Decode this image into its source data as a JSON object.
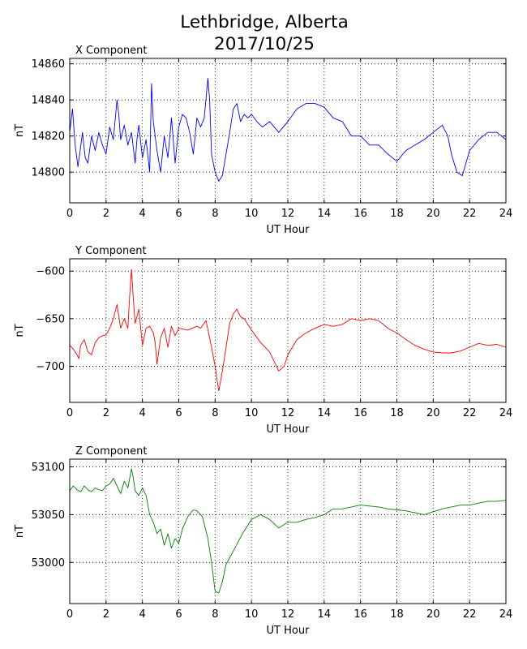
{
  "figure": {
    "title_line1": "Lethbridge, Alberta",
    "title_line2": "2017/10/25"
  },
  "chart_data": [
    {
      "type": "line",
      "title": "X Component",
      "xlabel": "UT Hour",
      "ylabel": "nT",
      "xlim": [
        0,
        24
      ],
      "ylim": [
        14783,
        14863
      ],
      "xticks": [
        0,
        2,
        4,
        6,
        8,
        10,
        12,
        14,
        16,
        18,
        20,
        22,
        24
      ],
      "yticks": [
        14800,
        14820,
        14840,
        14860
      ],
      "grid": true,
      "color": "#0000ff",
      "series": [
        {
          "x": [
            0,
            0.15,
            0.3,
            0.45,
            0.55,
            0.7,
            0.85,
            1.0,
            1.2,
            1.4,
            1.6,
            1.8,
            2.0,
            2.2,
            2.4,
            2.6,
            2.7,
            2.8,
            3.0,
            3.2,
            3.4,
            3.6,
            3.7,
            3.8,
            4.0,
            4.2,
            4.4,
            4.5,
            4.6,
            4.8,
            5.0,
            5.2,
            5.4,
            5.6,
            5.8,
            6.0,
            6.2,
            6.4,
            6.6,
            6.8,
            7.0,
            7.2,
            7.4,
            7.6,
            7.7,
            7.8,
            8.0,
            8.2,
            8.4,
            8.6,
            8.8,
            9.0,
            9.2,
            9.4,
            9.6,
            9.8,
            10.0,
            10.3,
            10.6,
            11.0,
            11.5,
            12.0,
            12.5,
            13.0,
            13.5,
            14.0,
            14.5,
            15.0,
            15.5,
            16.0,
            16.5,
            17.0,
            17.5,
            18.0,
            18.5,
            19.0,
            19.5,
            20.0,
            20.5,
            20.8,
            21.0,
            21.3,
            21.6,
            22.0,
            22.5,
            23.0,
            23.5,
            24.0
          ],
          "y": [
            14822,
            14835,
            14815,
            14803,
            14810,
            14822,
            14808,
            14805,
            14820,
            14812,
            14822,
            14815,
            14810,
            14825,
            14818,
            14840,
            14832,
            14818,
            14826,
            14815,
            14822,
            14805,
            14818,
            14826,
            14808,
            14818,
            14800,
            14849,
            14828,
            14812,
            14800,
            14820,
            14808,
            14830,
            14805,
            14825,
            14832,
            14830,
            14822,
            14810,
            14830,
            14825,
            14830,
            14852,
            14840,
            14810,
            14800,
            14795,
            14798,
            14810,
            14822,
            14835,
            14838,
            14828,
            14832,
            14830,
            14832,
            14828,
            14825,
            14828,
            14822,
            14828,
            14835,
            14838,
            14838,
            14836,
            14830,
            14828,
            14820,
            14820,
            14815,
            14815,
            14810,
            14806,
            14812,
            14815,
            14818,
            14822,
            14826,
            14820,
            14810,
            14800,
            14798,
            14812,
            14818,
            14822,
            14822,
            14818
          ]
        }
      ]
    },
    {
      "type": "line",
      "title": "Y Component",
      "xlabel": "UT Hour",
      "ylabel": "nT",
      "xlim": [
        0,
        24
      ],
      "ylim": [
        -738,
        -587
      ],
      "xticks": [
        0,
        2,
        4,
        6,
        8,
        10,
        12,
        14,
        16,
        18,
        20,
        22,
        24
      ],
      "yticks": [
        -700,
        -650,
        -600
      ],
      "grid": true,
      "color": "#ff0000",
      "series": [
        {
          "x": [
            0,
            0.2,
            0.4,
            0.5,
            0.6,
            0.8,
            1.0,
            1.2,
            1.4,
            1.6,
            1.8,
            2.0,
            2.2,
            2.4,
            2.6,
            2.8,
            3.0,
            3.2,
            3.3,
            3.4,
            3.5,
            3.6,
            3.8,
            4.0,
            4.2,
            4.4,
            4.6,
            4.7,
            4.8,
            5.0,
            5.2,
            5.4,
            5.6,
            5.8,
            6.0,
            6.5,
            7.0,
            7.2,
            7.5,
            7.8,
            8.0,
            8.2,
            8.4,
            8.6,
            8.8,
            9.0,
            9.2,
            9.4,
            9.6,
            10.0,
            10.5,
            11.0,
            11.5,
            11.8,
            12.0,
            12.5,
            13.0,
            13.5,
            14.0,
            14.5,
            15.0,
            15.5,
            16.0,
            16.5,
            17.0,
            17.5,
            18.0,
            18.5,
            19.0,
            19.5,
            20.0,
            20.5,
            21.0,
            21.5,
            22.0,
            22.5,
            23.0,
            23.5,
            24.0
          ],
          "y": [
            -678,
            -682,
            -688,
            -692,
            -678,
            -672,
            -685,
            -688,
            -675,
            -670,
            -668,
            -667,
            -660,
            -650,
            -635,
            -660,
            -650,
            -660,
            -625,
            -598,
            -630,
            -655,
            -640,
            -678,
            -660,
            -658,
            -665,
            -675,
            -698,
            -670,
            -660,
            -680,
            -658,
            -668,
            -660,
            -662,
            -658,
            -660,
            -652,
            -680,
            -700,
            -726,
            -705,
            -680,
            -655,
            -645,
            -640,
            -648,
            -650,
            -662,
            -675,
            -685,
            -705,
            -700,
            -688,
            -672,
            -665,
            -660,
            -656,
            -658,
            -656,
            -650,
            -652,
            -650,
            -652,
            -660,
            -665,
            -672,
            -678,
            -682,
            -685,
            -686,
            -686,
            -684,
            -680,
            -676,
            -678,
            -677,
            -680
          ]
        }
      ]
    },
    {
      "type": "line",
      "title": "Z Component",
      "xlabel": "UT Hour",
      "ylabel": "nT",
      "xlim": [
        0,
        24
      ],
      "ylim": [
        52957,
        53108
      ],
      "xticks": [
        0,
        2,
        4,
        6,
        8,
        10,
        12,
        14,
        16,
        18,
        20,
        22,
        24
      ],
      "yticks": [
        53000,
        53050,
        53100
      ],
      "grid": true,
      "color": "#008000",
      "series": [
        {
          "x": [
            0,
            0.2,
            0.4,
            0.6,
            0.8,
            1.0,
            1.2,
            1.4,
            1.6,
            1.8,
            2.0,
            2.2,
            2.4,
            2.6,
            2.8,
            3.0,
            3.2,
            3.4,
            3.5,
            3.6,
            3.8,
            4.0,
            4.2,
            4.4,
            4.6,
            4.8,
            5.0,
            5.2,
            5.4,
            5.6,
            5.8,
            6.0,
            6.2,
            6.5,
            6.8,
            7.0,
            7.3,
            7.6,
            7.8,
            8.0,
            8.2,
            8.4,
            8.6,
            8.8,
            9.0,
            9.5,
            10.0,
            10.5,
            11.0,
            11.5,
            12.0,
            12.5,
            13.0,
            13.5,
            14.0,
            14.5,
            15.0,
            15.5,
            16.0,
            16.5,
            17.0,
            17.5,
            18.0,
            18.5,
            19.0,
            19.5,
            20.0,
            20.5,
            21.0,
            21.5,
            22.0,
            22.5,
            23.0,
            23.5,
            24.0
          ],
          "y": [
            53075,
            53080,
            53076,
            53074,
            53080,
            53076,
            53074,
            53078,
            53076,
            53075,
            53080,
            53082,
            53088,
            53080,
            53072,
            53085,
            53078,
            53098,
            53088,
            53075,
            53070,
            53078,
            53070,
            53050,
            53042,
            53030,
            53035,
            53018,
            53030,
            53015,
            53025,
            53020,
            53035,
            53048,
            53055,
            53054,
            53048,
            53025,
            53000,
            52970,
            52968,
            52980,
            52998,
            53005,
            53012,
            53030,
            53045,
            53050,
            53045,
            53036,
            53042,
            53042,
            53045,
            53047,
            53050,
            53056,
            53056,
            53058,
            53060,
            53059,
            53058,
            53056,
            53055,
            53054,
            53052,
            53050,
            53053,
            53056,
            53058,
            53060,
            53060,
            53062,
            53064,
            53064,
            53065
          ]
        }
      ]
    }
  ]
}
